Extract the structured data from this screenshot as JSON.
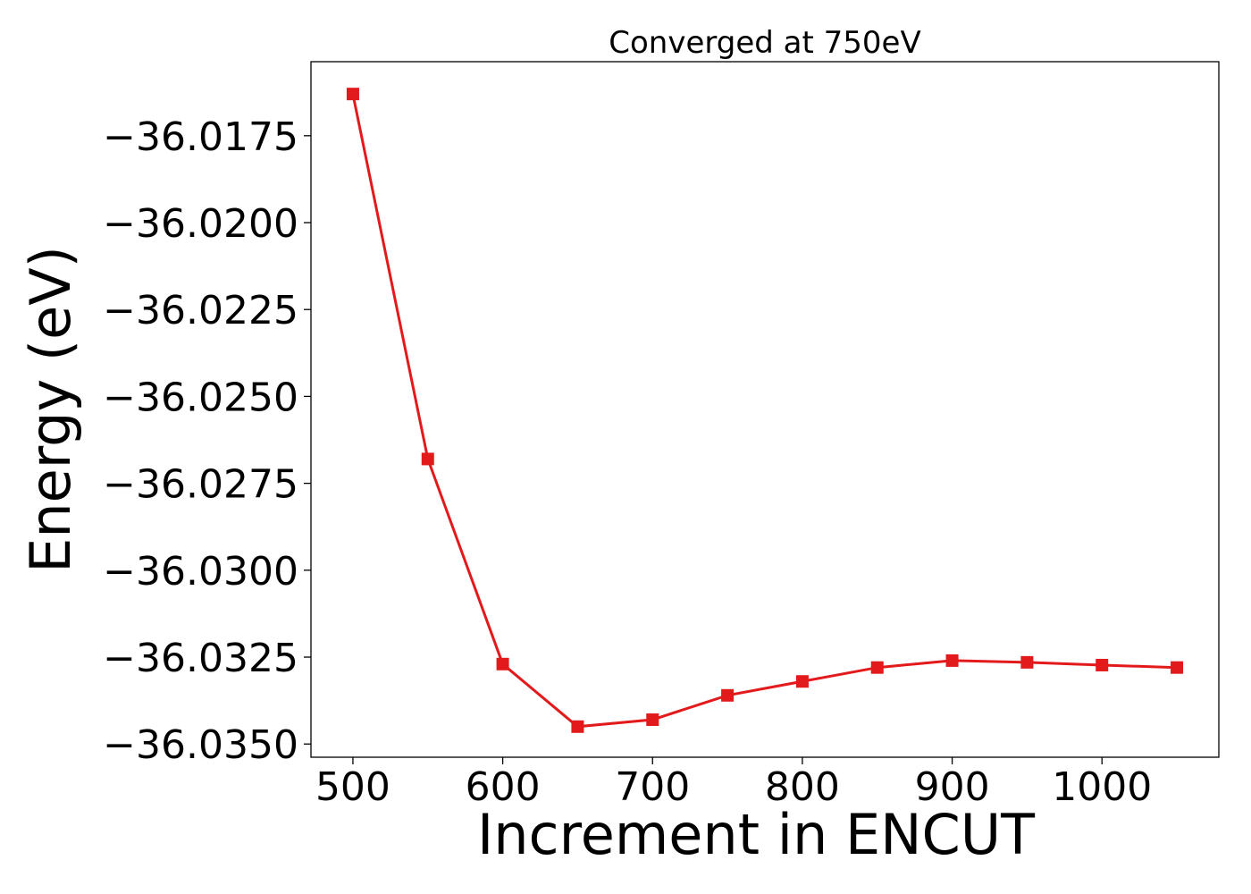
{
  "chart_data": {
    "type": "line",
    "title": "Converged at 750eV",
    "xlabel": "Increment in ENCUT",
    "ylabel": "Energy (eV)",
    "x": [
      500,
      550,
      600,
      650,
      700,
      750,
      800,
      850,
      900,
      950,
      1000,
      1050
    ],
    "series": [
      {
        "values": [
          -36.0163,
          -36.0268,
          -36.0327,
          -36.0345,
          -36.0343,
          -36.0336,
          -36.0332,
          -36.0328,
          -36.0326,
          -36.03265,
          -36.03273,
          -36.0328
        ],
        "color": "#e31a1c",
        "marker": "square"
      }
    ],
    "xticks": [
      500,
      600,
      700,
      800,
      900,
      1000
    ],
    "xtick_labels": [
      "500",
      "600",
      "700",
      "800",
      "900",
      "1000"
    ],
    "yticks": [
      -36.0175,
      -36.02,
      -36.0225,
      -36.025,
      -36.0275,
      -36.03,
      -36.0325,
      -36.035
    ],
    "ytick_labels": [
      "−36.0175",
      "−36.0200",
      "−36.0225",
      "−36.0250",
      "−36.0275",
      "−36.0300",
      "−36.0325",
      "−36.0350"
    ],
    "xlim": [
      472,
      1078
    ],
    "ylim": [
      -36.03538,
      -36.01537
    ],
    "grid": false,
    "legend": "none"
  }
}
